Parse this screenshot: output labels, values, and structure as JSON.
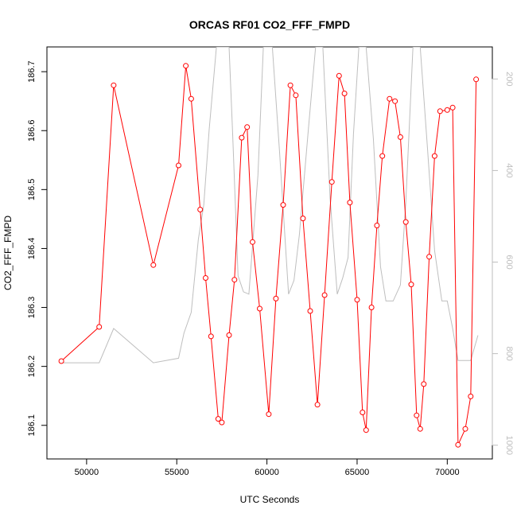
{
  "chart_data": {
    "type": "line",
    "title": "ORCAS RF01 CO2_FFF_FMPD",
    "xlabel": "UTC Seconds",
    "ylabel": "CO2_FFF_FMPD",
    "xlim": [
      47800,
      72500
    ],
    "ylim": [
      186.043,
      186.742
    ],
    "y2lim": [
      1030,
      130
    ],
    "x_ticks": [
      50000,
      55000,
      60000,
      65000,
      70000
    ],
    "x_tick_labels": [
      "50000",
      "55000",
      "60000",
      "65000",
      "70000"
    ],
    "y_ticks": [
      186.1,
      186.2,
      186.3,
      186.4,
      186.5,
      186.6,
      186.7
    ],
    "y_tick_labels": [
      "186.1",
      "186.2",
      "186.3",
      "186.4",
      "186.5",
      "186.6",
      "186.7"
    ],
    "y2_ticks": [
      200,
      400,
      600,
      800,
      1000
    ],
    "y2_tick_labels": [
      "200",
      "400",
      "600",
      "800",
      "1000"
    ],
    "grid": false,
    "colors": {
      "primary": "#ff0000",
      "secondary": "#bebebe",
      "axis": "#000000",
      "secondary_axis": "#bebebe"
    },
    "series": [
      {
        "axis": "left",
        "points": [
          [
            48600,
            186.209
          ],
          [
            50700,
            186.267
          ],
          [
            51500,
            186.677
          ],
          [
            53700,
            186.372
          ],
          [
            55100,
            186.541
          ],
          [
            55500,
            186.71
          ],
          [
            55800,
            186.654
          ],
          [
            56300,
            186.466
          ],
          [
            56600,
            186.35
          ],
          [
            56900,
            186.251
          ],
          [
            57300,
            186.111
          ],
          [
            57500,
            186.105
          ],
          [
            57900,
            186.253
          ],
          [
            58200,
            186.347
          ],
          [
            58600,
            186.588
          ],
          [
            58900,
            186.606
          ],
          [
            59200,
            186.411
          ],
          [
            59600,
            186.298
          ],
          [
            60100,
            186.119
          ],
          [
            60500,
            186.315
          ],
          [
            60900,
            186.474
          ],
          [
            61300,
            186.677
          ],
          [
            61600,
            186.66
          ],
          [
            62000,
            186.451
          ],
          [
            62400,
            186.294
          ],
          [
            62800,
            186.135
          ],
          [
            63200,
            186.321
          ],
          [
            63600,
            186.513
          ],
          [
            64000,
            186.693
          ],
          [
            64300,
            186.663
          ],
          [
            64600,
            186.478
          ],
          [
            65000,
            186.313
          ],
          [
            65300,
            186.122
          ],
          [
            65500,
            186.092
          ],
          [
            65800,
            186.3
          ],
          [
            66100,
            186.439
          ],
          [
            66400,
            186.557
          ],
          [
            66800,
            186.654
          ],
          [
            67100,
            186.65
          ],
          [
            67400,
            186.589
          ],
          [
            67700,
            186.445
          ],
          [
            68000,
            186.339
          ],
          [
            68300,
            186.117
          ],
          [
            68500,
            186.094
          ],
          [
            68700,
            186.17
          ],
          [
            69000,
            186.386
          ],
          [
            69300,
            186.557
          ],
          [
            69600,
            186.633
          ],
          [
            70000,
            186.635
          ],
          [
            70300,
            186.639
          ],
          [
            70600,
            186.067
          ],
          [
            71000,
            186.094
          ],
          [
            71300,
            186.149
          ],
          [
            71600,
            186.687
          ]
        ]
      },
      {
        "axis": "right",
        "points": [
          [
            48600,
            820
          ],
          [
            50700,
            820
          ],
          [
            51500,
            745
          ],
          [
            53700,
            820
          ],
          [
            55100,
            810
          ],
          [
            55400,
            755
          ],
          [
            55800,
            710
          ],
          [
            56200,
            550
          ],
          [
            56500,
            475
          ],
          [
            56800,
            310
          ],
          [
            57200,
            130
          ],
          [
            57500,
            130
          ],
          [
            57900,
            130
          ],
          [
            58100,
            320
          ],
          [
            58400,
            630
          ],
          [
            58700,
            665
          ],
          [
            59000,
            670
          ],
          [
            59500,
            410
          ],
          [
            59800,
            130
          ],
          [
            60300,
            130
          ],
          [
            60700,
            360
          ],
          [
            61200,
            670
          ],
          [
            61500,
            640
          ],
          [
            61800,
            540
          ],
          [
            62300,
            310
          ],
          [
            62700,
            130
          ],
          [
            63100,
            130
          ],
          [
            63500,
            460
          ],
          [
            63900,
            670
          ],
          [
            64200,
            635
          ],
          [
            64500,
            590
          ],
          [
            64800,
            320
          ],
          [
            65100,
            130
          ],
          [
            65500,
            130
          ],
          [
            65900,
            330
          ],
          [
            66300,
            610
          ],
          [
            66600,
            685
          ],
          [
            67000,
            685
          ],
          [
            67400,
            650
          ],
          [
            67700,
            470
          ],
          [
            68100,
            130
          ],
          [
            68500,
            130
          ],
          [
            68900,
            350
          ],
          [
            69300,
            575
          ],
          [
            69700,
            685
          ],
          [
            70000,
            685
          ],
          [
            70300,
            745
          ],
          [
            70600,
            815
          ],
          [
            70900,
            815
          ],
          [
            71300,
            815
          ],
          [
            71700,
            760
          ]
        ]
      }
    ]
  }
}
